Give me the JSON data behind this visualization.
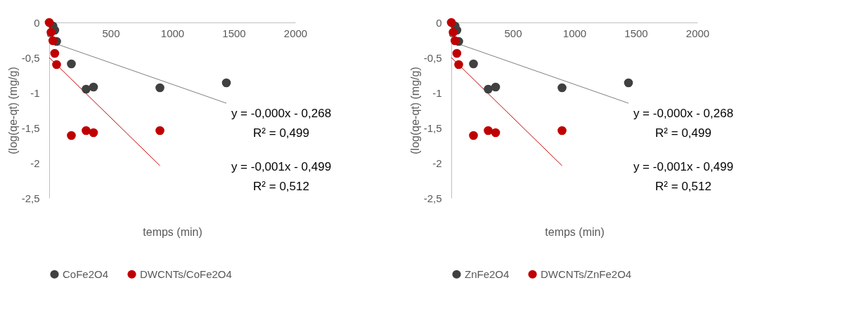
{
  "chart_data": [
    {
      "type": "scatter",
      "xlabel": "temps (min)",
      "ylabel": "(log(qe-qt) (mg/g)",
      "xlim": [
        0,
        2000
      ],
      "xticks": [
        0,
        500,
        1000,
        1500,
        2000
      ],
      "ylim": [
        -2.5,
        0
      ],
      "yticks": [
        {
          "value": 0,
          "label": "0"
        },
        {
          "value": -0.5,
          "label": "-0,5"
        },
        {
          "value": -1,
          "label": "-1"
        },
        {
          "value": -1.5,
          "label": "-1,5"
        },
        {
          "value": -2,
          "label": "-2"
        },
        {
          "value": -2.5,
          "label": "-2,5"
        }
      ],
      "grid": false,
      "legend": "bottom",
      "marker": "circle",
      "series": [
        {
          "name": "CoFe2O4",
          "color": "#404040",
          "x": [
            30,
            45,
            60,
            180,
            300,
            360,
            900,
            1440
          ],
          "values": [
            -0.05,
            -0.11,
            -0.27,
            -0.59,
            -0.95,
            -0.92,
            -0.93,
            -0.86
          ]
        },
        {
          "name": "DWCNTs/CoFe2O4",
          "color": "#c00000",
          "x": [
            0,
            15,
            30,
            45,
            60,
            180,
            300,
            360,
            900
          ],
          "values": [
            0,
            -0.14,
            -0.26,
            -0.44,
            -0.6,
            -1.61,
            -1.54,
            -1.57,
            -1.54
          ]
        },
        {
          "type": "line",
          "color": "#7f7f7f",
          "line_style": "solid",
          "marker": "none",
          "x": [
            0,
            1440
          ],
          "values": [
            -0.27,
            -1.15
          ]
        },
        {
          "type": "line",
          "color": "#c00000",
          "line_style": "solid",
          "marker": "none",
          "x": [
            0,
            900
          ],
          "values": [
            -0.5,
            -2.04
          ]
        }
      ],
      "annotations": [
        "y = -0,000x - 0,268",
        "R² = 0,499",
        "y = -0,001x - 0,499",
        "R² = 0,512"
      ]
    },
    {
      "type": "scatter",
      "xlabel": "temps (min)",
      "ylabel": "(log(qe-qt) (mg/g)",
      "xlim": [
        0,
        2000
      ],
      "xticks": [
        0,
        500,
        1000,
        1500,
        2000
      ],
      "ylim": [
        -2.5,
        0
      ],
      "yticks": [
        {
          "value": 0,
          "label": "0"
        },
        {
          "value": -0.5,
          "label": "-0,5"
        },
        {
          "value": -1,
          "label": "-1"
        },
        {
          "value": -1.5,
          "label": "-1,5"
        },
        {
          "value": -2,
          "label": "-2"
        },
        {
          "value": -2.5,
          "label": "-2,5"
        }
      ],
      "grid": false,
      "legend": "bottom",
      "marker": "circle",
      "series": [
        {
          "name": "ZnFe2O4",
          "color": "#404040",
          "x": [
            30,
            45,
            60,
            180,
            300,
            360,
            900,
            1440
          ],
          "values": [
            -0.05,
            -0.11,
            -0.27,
            -0.59,
            -0.95,
            -0.92,
            -0.93,
            -0.86
          ]
        },
        {
          "name": "DWCNTs/ZnFe2O4",
          "color": "#c00000",
          "x": [
            0,
            15,
            30,
            45,
            60,
            180,
            300,
            360,
            900
          ],
          "values": [
            0,
            -0.14,
            -0.26,
            -0.44,
            -0.6,
            -1.61,
            -1.54,
            -1.57,
            -1.54
          ]
        },
        {
          "type": "line",
          "color": "#7f7f7f",
          "line_style": "solid",
          "marker": "none",
          "x": [
            0,
            1440
          ],
          "values": [
            -0.27,
            -1.15
          ]
        },
        {
          "type": "line",
          "color": "#c00000",
          "line_style": "solid",
          "marker": "none",
          "x": [
            0,
            900
          ],
          "values": [
            -0.5,
            -2.04
          ]
        }
      ],
      "annotations": [
        "y = -0,000x - 0,268",
        "R² = 0,499",
        "y = -0,001x - 0,499",
        "R² = 0,512"
      ]
    }
  ]
}
